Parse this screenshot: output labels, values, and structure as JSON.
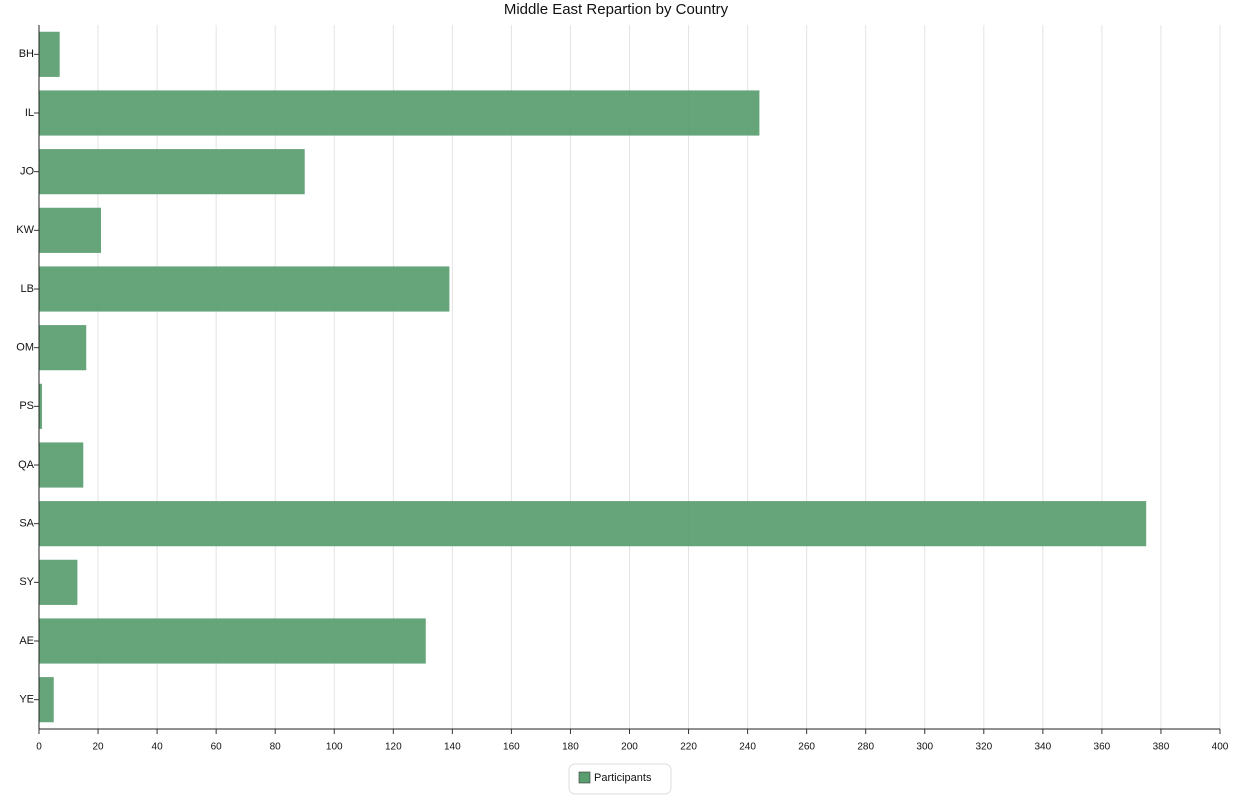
{
  "chart_data": {
    "type": "bar",
    "orientation": "horizontal",
    "title": "Middle East Repartion by Country",
    "categories": [
      "BH",
      "IL",
      "JO",
      "KW",
      "LB",
      "OM",
      "PS",
      "QA",
      "SA",
      "SY",
      "AE",
      "YE"
    ],
    "series": [
      {
        "name": "Participants",
        "color": "#5a9e70",
        "values": [
          7,
          244,
          90,
          21,
          139,
          16,
          1,
          15,
          375,
          13,
          131,
          5
        ]
      }
    ],
    "xlim": [
      0,
      400
    ],
    "xticks": [
      0,
      20,
      40,
      60,
      80,
      100,
      120,
      140,
      160,
      180,
      200,
      220,
      240,
      260,
      280,
      300,
      320,
      340,
      360,
      380,
      400
    ],
    "grid": true,
    "legend": "bottom"
  }
}
